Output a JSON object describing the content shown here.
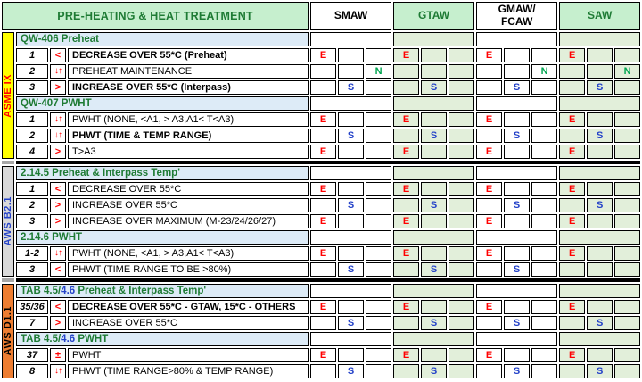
{
  "header": {
    "title": "PRE-HEATING & HEAT TREATMENT",
    "processes": [
      {
        "label": "SMAW",
        "tint": false
      },
      {
        "label": "GTAW",
        "tint": true
      },
      {
        "label": "GMAW/\nFCAW",
        "tint": false
      },
      {
        "label": "SAW",
        "tint": true
      }
    ]
  },
  "legend_letters": {
    "E": {
      "meaning": "essential",
      "color": "#FF0000",
      "subcolumn": 0
    },
    "S": {
      "meaning": "supplementary",
      "color": "#2442C8",
      "subcolumn": 1
    },
    "N": {
      "meaning": "nonessential",
      "color": "#00A550",
      "subcolumn": 2
    }
  },
  "colors": {
    "header_green_bg": "#C6EFCE",
    "header_green_text": "#1E7B34",
    "section_header_bg": "#DDEBF7",
    "tint_column_bg": "#E2EFDA",
    "asme_strip_bg": "#FFFF00",
    "asme_strip_text": "#FF0000",
    "b21_strip_bg": "#D9D9D9",
    "b21_strip_text": "#2442C8",
    "d11_strip_bg": "#ED7D31",
    "d11_strip_text": "#000000",
    "symbol_red": "#FF0000"
  },
  "sections": [
    {
      "id": "asme-ix",
      "label": "ASME IX",
      "strip_bg": "#FFFF00",
      "strip_text_color": "#FF0000",
      "groups": [
        {
          "title_parts": [
            {
              "text": "QW-406 Preheat",
              "color": "green"
            }
          ],
          "rows": [
            {
              "num": "1",
              "sym": "<",
              "desc": "DECREASE OVER 55*C (Preheat)",
              "bold": true,
              "marks": [
                "E",
                "E",
                "E",
                "E"
              ]
            },
            {
              "num": "2",
              "sym": "↓↑",
              "desc": "PREHEAT MAINTENANCE",
              "bold": false,
              "marks": [
                "N",
                "",
                "N",
                "N"
              ]
            },
            {
              "num": "3",
              "sym": ">",
              "desc": "INCREASE OVER 55*C (Interpass)",
              "bold": true,
              "marks": [
                "S",
                "S",
                "S",
                "S"
              ]
            }
          ]
        },
        {
          "title_parts": [
            {
              "text": "QW-407 PWHT",
              "color": "green"
            }
          ],
          "rows": [
            {
              "num": "1",
              "sym": "↓↑",
              "desc": "PWHT (NONE, <A1, > A3,A1< T<A3)",
              "bold": false,
              "marks": [
                "E",
                "E",
                "E",
                "E"
              ]
            },
            {
              "num": "2",
              "sym": "↓↑",
              "desc": "PHWT (TIME & TEMP RANGE)",
              "bold": true,
              "marks": [
                "S",
                "S",
                "S",
                "S"
              ]
            },
            {
              "num": "4",
              "sym": ">",
              "desc": "T>A3",
              "bold": false,
              "marks": [
                "E",
                "E",
                "E",
                "E"
              ]
            }
          ]
        }
      ]
    },
    {
      "id": "aws-b21",
      "label": "AWS B2.1",
      "strip_bg": "#D9D9D9",
      "strip_text_color": "#2442C8",
      "groups": [
        {
          "title_parts": [
            {
              "text": "2.14.5 Preheat & Interpass Temp'",
              "color": "green"
            }
          ],
          "rows": [
            {
              "num": "1",
              "sym": "<",
              "desc": "DECREASE OVER 55*C",
              "bold": false,
              "marks": [
                "E",
                "E",
                "E",
                "E"
              ]
            },
            {
              "num": "2",
              "sym": ">",
              "desc": "INCREASE OVER 55*C",
              "bold": false,
              "marks": [
                "S",
                "S",
                "S",
                "S"
              ]
            },
            {
              "num": "3",
              "sym": ">",
              "desc": "INCREASE OVER MAXIMUM (M-23/24/26/27)",
              "bold": false,
              "marks": [
                "E",
                "E",
                "E",
                "E"
              ]
            }
          ]
        },
        {
          "title_parts": [
            {
              "text": "2.14.6 PWHT",
              "color": "green"
            }
          ],
          "rows": [
            {
              "num": "1-2",
              "sym": "↓↑",
              "desc": "PWHT (NONE, <A1, > A3,A1< T<A3)",
              "bold": false,
              "marks": [
                "E",
                "E",
                "E",
                "E"
              ]
            },
            {
              "num": "3",
              "sym": "<",
              "desc": "PHWT (TIME RANGE  TO BE >80%)",
              "bold": false,
              "marks": [
                "S",
                "S",
                "S",
                ""
              ]
            }
          ]
        }
      ]
    },
    {
      "id": "aws-d11",
      "label": "AWS D1.1",
      "strip_bg": "#ED7D31",
      "strip_text_color": "#000000",
      "groups": [
        {
          "title_parts": [
            {
              "text": "TAB 4.5/",
              "color": "green"
            },
            {
              "text": "4.6",
              "color": "blue"
            },
            {
              "text": " Preheat & Interpass Temp'",
              "color": "green"
            }
          ],
          "rows": [
            {
              "num": "35/36",
              "sym": "<",
              "desc": "DECREASE OVER 55*C - GTAW, 15*C - OTHERS",
              "bold": true,
              "marks": [
                "E",
                "E",
                "E",
                "E"
              ]
            },
            {
              "num": "7",
              "sym": ">",
              "desc": "INCREASE OVER 55*C",
              "bold": false,
              "marks": [
                "S",
                "S",
                "S",
                "S"
              ]
            }
          ]
        },
        {
          "title_parts": [
            {
              "text": "TAB 4.5/",
              "color": "green"
            },
            {
              "text": "4.6",
              "color": "blue"
            },
            {
              "text": " PWHT",
              "color": "green"
            }
          ],
          "rows": [
            {
              "num": "37",
              "sym": "±",
              "desc": "PWHT",
              "bold": false,
              "marks": [
                "E",
                "E",
                "E",
                "E"
              ]
            },
            {
              "num": "8",
              "sym": "↓↑",
              "desc": "PHWT (TIME RANGE>80% & TEMP RANGE)",
              "bold": false,
              "marks": [
                "S",
                "S",
                "S",
                "S"
              ]
            }
          ]
        }
      ]
    }
  ]
}
